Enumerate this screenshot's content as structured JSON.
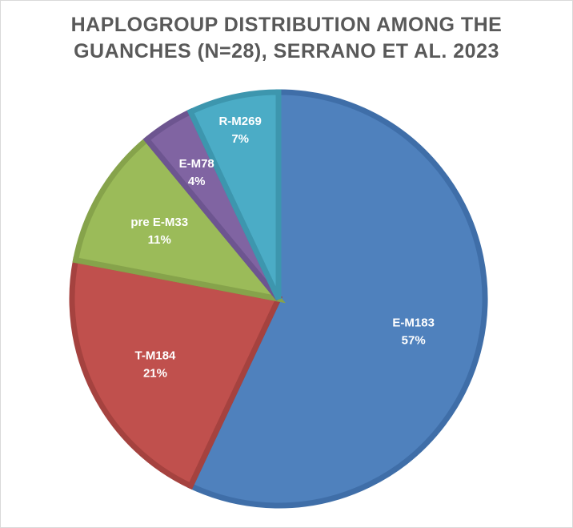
{
  "chart_data": {
    "type": "pie",
    "title_lines": [
      "HAPLOGROUP DISTRIBUTION AMONG THE",
      "GUANCHES (N=28), SERRANO ET AL. 2023"
    ],
    "slices": [
      {
        "label": "E-M183",
        "value": 57,
        "value_label": "57%",
        "color": "#4f81bd",
        "border": "#3f6ea8"
      },
      {
        "label": "T-M184",
        "value": 21,
        "value_label": "21%",
        "color": "#c0504d",
        "border": "#a5423f"
      },
      {
        "label": "pre E-M33",
        "value": 11,
        "value_label": "11%",
        "color": "#9bbb59",
        "border": "#86a34b"
      },
      {
        "label": "E-M78",
        "value": 4,
        "value_label": "4%",
        "color": "#8064a2",
        "border": "#6d5590"
      },
      {
        "label": "R-M269",
        "value": 7,
        "value_label": "7%",
        "color": "#4bacc6",
        "border": "#3d96ae"
      }
    ],
    "start_angle_deg": 0,
    "direction": "clockwise",
    "legend": "none"
  }
}
